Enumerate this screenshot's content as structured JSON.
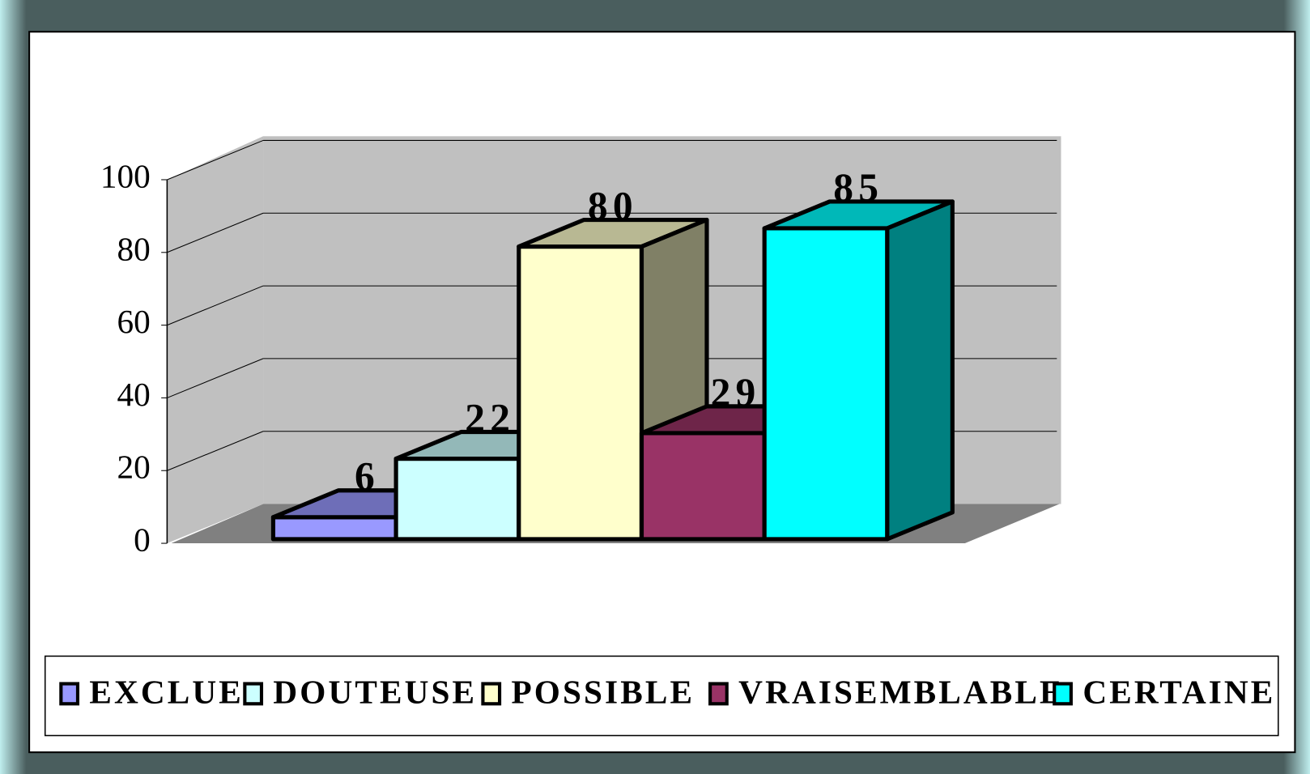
{
  "chart_data": {
    "type": "bar3d",
    "series": [
      {
        "name": "EXCLUE",
        "color": "#9999ff",
        "values": [
          6
        ]
      },
      {
        "name": "DOUTEUSE",
        "color": "#ccffff",
        "values": [
          22
        ]
      },
      {
        "name": "POSSIBLE",
        "color": "#ffffcc",
        "values": [
          80
        ]
      },
      {
        "name": "VRAISEMBLABLE",
        "color": "#993366",
        "values": [
          29
        ]
      },
      {
        "name": "CERTAINE",
        "color": "#00ffff",
        "values": [
          85
        ]
      }
    ],
    "ylim": [
      0,
      100
    ],
    "yticks": [
      0,
      20,
      40,
      60,
      80,
      100
    ],
    "grid": true,
    "legend": "bottom"
  }
}
